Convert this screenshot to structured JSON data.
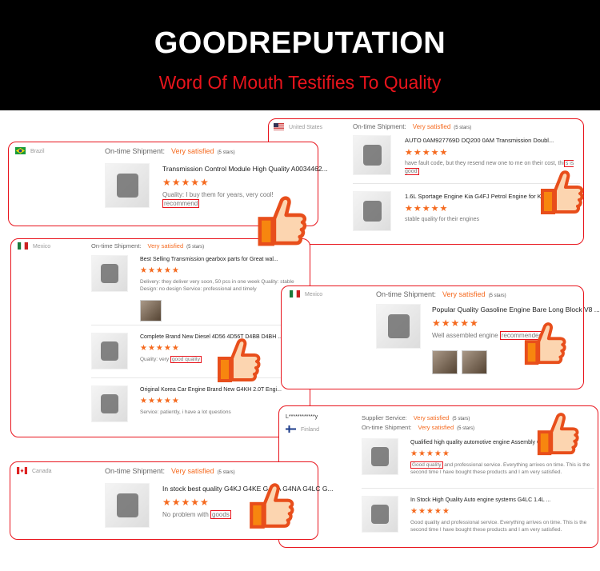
{
  "header": {
    "title": "GOODREPUTATION",
    "subtitle": "Word Of Mouth Testifies To Quality"
  },
  "colors": {
    "accent": "#e8141c",
    "satisfied": "#f56a1f",
    "thumb_fill": "#fcd5b0",
    "thumb_outline": "#e84e1b"
  },
  "cards": [
    {
      "id": "us",
      "country": "United States",
      "flag": "us",
      "ratings": [
        {
          "label": "On-time Shipment:",
          "value": "Very satisfied",
          "stars": "(5 stars)"
        }
      ],
      "items": [
        {
          "title": "AUTO 0AM927769D DQ200 0AM Transmission Doubl...",
          "stars": "★★★★★",
          "review_pre": "have fault code, but they resend new one to me on their cost, thi",
          "review_hl": "s is good",
          "review_post": ""
        },
        {
          "title": "1.6L Sportage Engine Kia G4FJ Petrol Engine for Kia ...",
          "stars": "★★★★★",
          "review_pre": "stable quality for their engines",
          "review_hl": "",
          "review_post": ""
        }
      ]
    },
    {
      "id": "brazil",
      "country": "Brazil",
      "flag": "br",
      "ratings": [
        {
          "label": "On-time Shipment:",
          "value": "Very satisfied",
          "stars": "(5 stars)"
        }
      ],
      "items": [
        {
          "title": "Transmission Control Module High Quality A0034462...",
          "stars": "★★★★★",
          "review_pre": "Quality:   I buy them for years, very cool! ",
          "review_hl": "recommend",
          "review_post": ""
        }
      ]
    },
    {
      "id": "mexico1",
      "country": "Mexico",
      "flag": "mx",
      "ratings": [
        {
          "label": "On-time Shipment:",
          "value": "Very satisfied",
          "stars": "(5 stars)"
        }
      ],
      "items": [
        {
          "title": "Best Selling Transmission gearbox parts for Great wal...",
          "stars": "★★★★★",
          "review_pre": "Delivery:  they deliver very soon, 50 pcs in one week  Quality:   stable Design:   no design Service:   professional and timely",
          "review_hl": "",
          "review_post": ""
        },
        {
          "title": "Complete Brand New Diesel 4D56 4D56T D4BB D4BH ...",
          "stars": "★★★★★",
          "review_pre": "Quality:   very ",
          "review_hl": "good quality",
          "review_post": ""
        },
        {
          "title": "Original Korea Car Engine Brand New G4KH 2.0T Engi...",
          "stars": "★★★★★",
          "review_pre": "Service:   patiently, i have a lot questions",
          "review_hl": "",
          "review_post": ""
        }
      ]
    },
    {
      "id": "mexico2",
      "country": "Mexico",
      "flag": "mx",
      "ratings": [
        {
          "label": "On-time Shipment:",
          "value": "Very satisfied",
          "stars": "(5 stars)"
        }
      ],
      "items": [
        {
          "title": "Popular Quality Gasoline Engine Bare Long Block V8 ...",
          "stars": "★★★★★",
          "review_pre": "Well assembled engine ",
          "review_hl": "recommended.",
          "review_post": ""
        }
      ]
    },
    {
      "id": "finland",
      "buyer": "L************y",
      "country": "Finland",
      "flag": "fi",
      "ratings": [
        {
          "label": "Supplier Service:",
          "value": "Very satisfied",
          "stars": "(5 stars)"
        },
        {
          "label": "On-time Shipment:",
          "value": "Very satisfied",
          "stars": "(5 stars)"
        }
      ],
      "items": [
        {
          "title": "Qualified high quality automotive engine Assembly G...",
          "stars": "★★★★★",
          "review_pre": "",
          "review_hl": "Good quality",
          "review_post": " and professional service.  Everything arrives on time.  This is the second time I have bought these products and I am very satisfied."
        },
        {
          "title": "In Stock High Quality Auto engine systems G4LC 1.4L ...",
          "stars": "★★★★★",
          "review_pre": "Good quality and professional service.  Everything arrives on time.  This is the second time I have bought these products and I am very satisfied.",
          "review_hl": "",
          "review_post": ""
        }
      ]
    },
    {
      "id": "canada",
      "country": "Canada",
      "flag": "ca",
      "ratings": [
        {
          "label": "On-time Shipment:",
          "value": "Very satisfied",
          "stars": "(5 stars)"
        }
      ],
      "items": [
        {
          "title": "In stock best quality G4KJ G4KE G4KA G4NA G4LC G...",
          "stars": "★★★★★",
          "review_pre": "No problem with ",
          "review_hl": "goods",
          "review_post": ""
        }
      ]
    }
  ]
}
